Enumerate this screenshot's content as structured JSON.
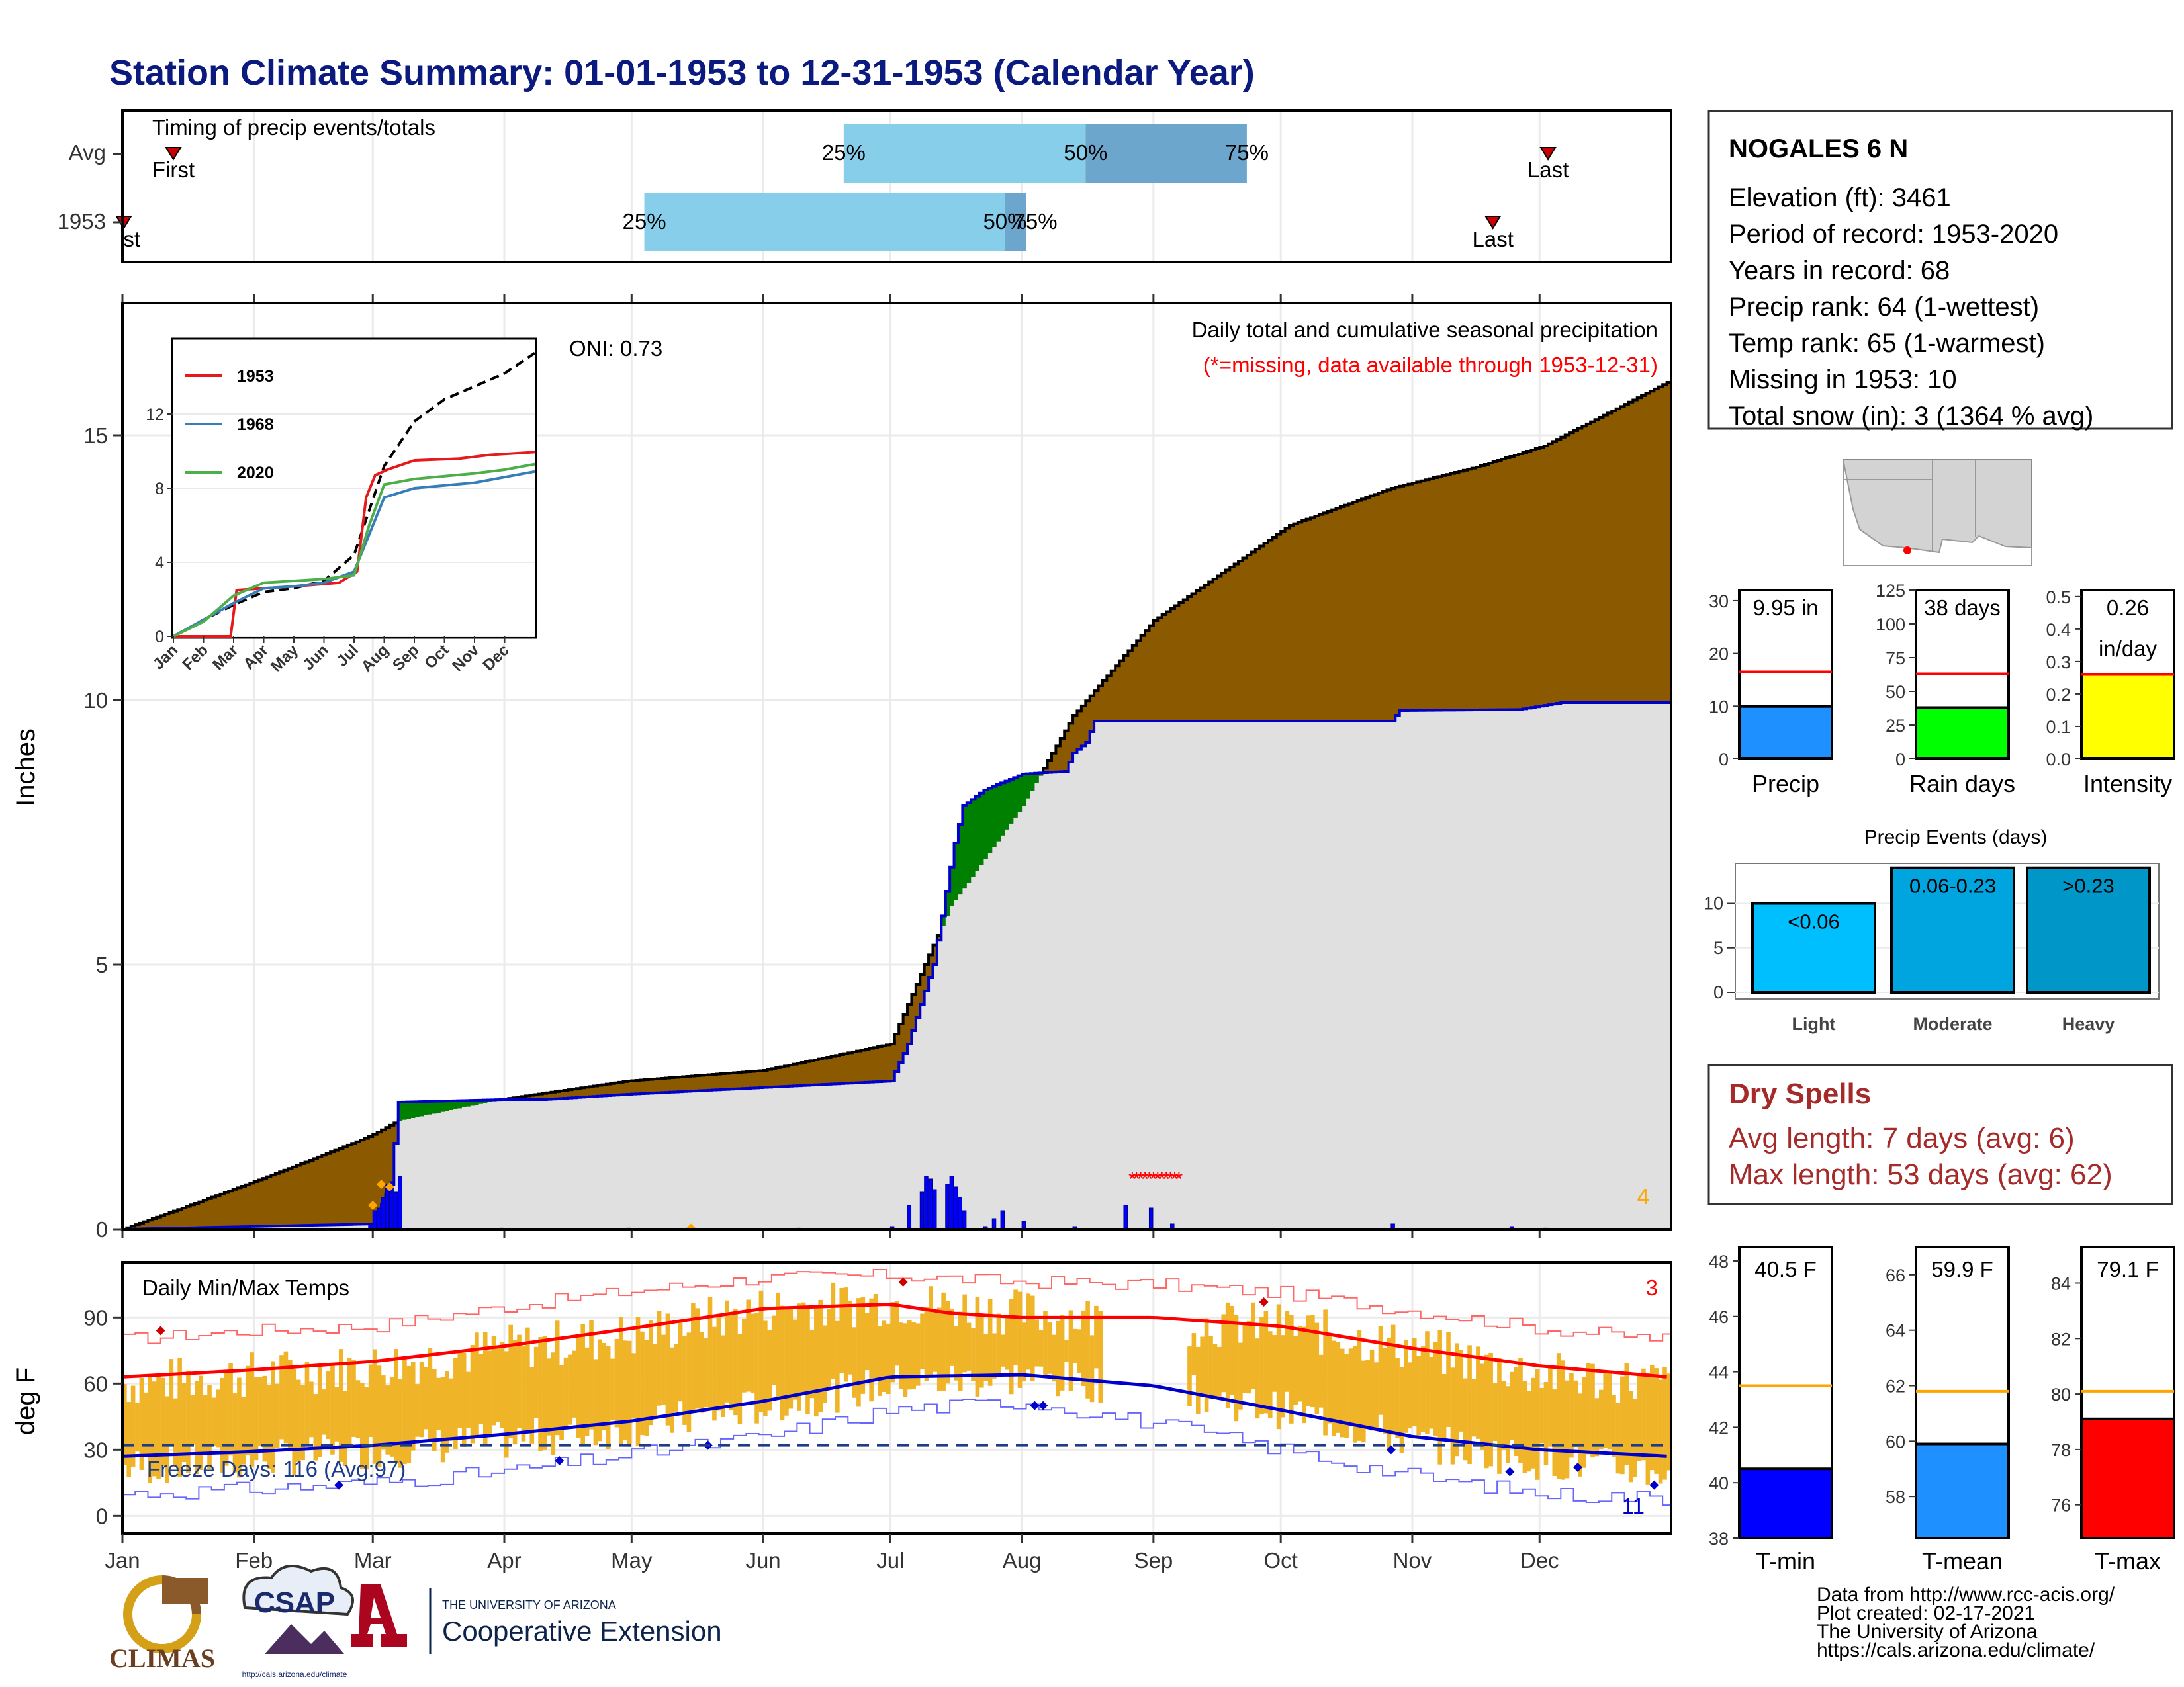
{
  "title": "Station Climate Summary: 01-01-1953 to 12-31-1953 (Calendar Year)",
  "months": [
    "Jan",
    "Feb",
    "Mar",
    "Apr",
    "May",
    "Jun",
    "Jul",
    "Aug",
    "Sep",
    "Oct",
    "Nov",
    "Dec"
  ],
  "timing_panel": {
    "label": "Timing of precip events/totals",
    "rows": [
      "Avg",
      "1953"
    ],
    "first_label": "First",
    "last_label": "Last",
    "first_label_1953": "First",
    "pct_labels": [
      "25%",
      "50%",
      "75%"
    ],
    "chart_data": {
      "type": "bar",
      "x_units": "day of year",
      "avg": {
        "first": 13,
        "q25": 171,
        "q50": 228,
        "q75": 266,
        "last": 337
      },
      "y1953": {
        "first": 1,
        "q25": 124,
        "q50": 209,
        "q75": 214,
        "last": 324
      }
    }
  },
  "precip_panel": {
    "ylabel": "Inches",
    "yticks": [
      "0",
      "5",
      "10",
      "15"
    ],
    "oni": "ONI: 0.73",
    "caption": "Daily total and cumulative seasonal precipitation",
    "missing_note": "(*=missing, data available through 1953-12-31)",
    "corner_count": "4",
    "chart_data": {
      "type": "area",
      "x_units": "day of year",
      "ylim": [
        0,
        17.5
      ],
      "avg_cumulative": [
        [
          1,
          0
        ],
        [
          15,
          0.4
        ],
        [
          32,
          0.9
        ],
        [
          45,
          1.3
        ],
        [
          59,
          1.75
        ],
        [
          66,
          2.05
        ],
        [
          90,
          2.45
        ],
        [
          120,
          2.8
        ],
        [
          152,
          3.0
        ],
        [
          182,
          3.5
        ],
        [
          190,
          5.0
        ],
        [
          196,
          6.1
        ],
        [
          213,
          8.0
        ],
        [
          225,
          9.7
        ],
        [
          244,
          11.5
        ],
        [
          260,
          12.4
        ],
        [
          276,
          13.3
        ],
        [
          300,
          14.0
        ],
        [
          320,
          14.4
        ],
        [
          336,
          14.8
        ],
        [
          365,
          16.0
        ]
      ],
      "cum_1953": [
        [
          1,
          0
        ],
        [
          60,
          0.1
        ],
        [
          64,
          0.85
        ],
        [
          66,
          2.4
        ],
        [
          90,
          2.45
        ],
        [
          100,
          2.45
        ],
        [
          120,
          2.55
        ],
        [
          182,
          2.8
        ],
        [
          186,
          3.5
        ],
        [
          192,
          5.0
        ],
        [
          197,
          7.3
        ],
        [
          199,
          8.0
        ],
        [
          204,
          8.3
        ],
        [
          213,
          8.6
        ],
        [
          223,
          8.65
        ],
        [
          225,
          9.0
        ],
        [
          228,
          9.2
        ],
        [
          230,
          9.6
        ],
        [
          250,
          9.6
        ],
        [
          280,
          9.6
        ],
        [
          300,
          9.6
        ],
        [
          302,
          9.8
        ],
        [
          330,
          9.82
        ],
        [
          340,
          9.95
        ],
        [
          365,
          9.95
        ]
      ],
      "missing_days": [
        [
          239,
          1.0
        ],
        [
          250,
          1.0
        ]
      ],
      "daily_bars": [
        [
          59,
          0.1
        ],
        [
          60,
          0.35
        ],
        [
          61,
          0.4
        ],
        [
          62,
          0.6
        ],
        [
          63,
          0.85
        ],
        [
          64,
          0.9
        ],
        [
          65,
          0.7
        ],
        [
          66,
          1.0
        ],
        [
          90,
          0.02
        ],
        [
          120,
          0.02
        ],
        [
          160,
          0.02
        ],
        [
          182,
          0.05
        ],
        [
          186,
          0.45
        ],
        [
          189,
          0.7
        ],
        [
          190,
          1.0
        ],
        [
          191,
          0.95
        ],
        [
          192,
          0.75
        ],
        [
          195,
          0.85
        ],
        [
          196,
          1.0
        ],
        [
          197,
          0.8
        ],
        [
          198,
          0.6
        ],
        [
          199,
          0.35
        ],
        [
          204,
          0.05
        ],
        [
          206,
          0.2
        ],
        [
          208,
          0.35
        ],
        [
          213,
          0.15
        ],
        [
          225,
          0.05
        ],
        [
          237,
          0.45
        ],
        [
          243,
          0.4
        ],
        [
          248,
          0.1
        ],
        [
          300,
          0.1
        ],
        [
          328,
          0.05
        ],
        [
          336,
          0.02
        ]
      ]
    }
  },
  "inset": {
    "legend": [
      "1953",
      "1968",
      "2020"
    ],
    "yticks": [
      "0",
      "4",
      "8",
      "12"
    ],
    "colors": {
      "1953": "#e41a1c",
      "1968": "#377eb8",
      "2020": "#4daf4a"
    },
    "chart_data": {
      "type": "line",
      "x_units": "month",
      "ylim": [
        0,
        16
      ],
      "avg": [
        [
          0,
          0
        ],
        [
          1,
          0.9
        ],
        [
          2,
          1.7
        ],
        [
          3,
          2.4
        ],
        [
          4,
          2.6
        ],
        [
          5,
          3.0
        ],
        [
          6,
          4.4
        ],
        [
          7,
          9.2
        ],
        [
          8,
          11.6
        ],
        [
          9,
          12.8
        ],
        [
          10,
          13.5
        ],
        [
          11,
          14.2
        ],
        [
          12,
          15.3
        ]
      ],
      "series": [
        {
          "name": "1953",
          "values": [
            [
              0,
              0
            ],
            [
              1.9,
              0
            ],
            [
              2.1,
              2.5
            ],
            [
              4,
              2.7
            ],
            [
              5.5,
              2.9
            ],
            [
              6.1,
              3.5
            ],
            [
              6.4,
              7.5
            ],
            [
              6.7,
              8.7
            ],
            [
              7.1,
              9.0
            ],
            [
              8,
              9.5
            ],
            [
              9.5,
              9.6
            ],
            [
              10.5,
              9.8
            ],
            [
              12,
              9.95
            ]
          ]
        },
        {
          "name": "1968",
          "values": [
            [
              0,
              0
            ],
            [
              1,
              0.9
            ],
            [
              2,
              1.8
            ],
            [
              3,
              2.6
            ],
            [
              4,
              2.7
            ],
            [
              5,
              2.9
            ],
            [
              6,
              3.5
            ],
            [
              6.5,
              5.5
            ],
            [
              7,
              7.5
            ],
            [
              8,
              8.0
            ],
            [
              10,
              8.3
            ],
            [
              11,
              8.6
            ],
            [
              12,
              8.9
            ]
          ]
        },
        {
          "name": "2020",
          "values": [
            [
              0,
              0
            ],
            [
              1,
              0.8
            ],
            [
              2,
              2.2
            ],
            [
              3,
              2.9
            ],
            [
              4,
              3.0
            ],
            [
              5,
              3.1
            ],
            [
              6,
              3.3
            ],
            [
              6.5,
              6.0
            ],
            [
              7,
              8.2
            ],
            [
              8,
              8.5
            ],
            [
              10,
              8.8
            ],
            [
              11,
              9.0
            ],
            [
              12,
              9.3
            ]
          ]
        }
      ]
    }
  },
  "temp_panel": {
    "ylabel": "deg F",
    "yticks": [
      "0",
      "30",
      "60",
      "90"
    ],
    "label": "Daily Min/Max Temps",
    "freeze": "Freeze Days: 116 (Avg:97)",
    "corner_red": "3",
    "corner_blue": "11",
    "chart_data": {
      "type": "bar",
      "x_units": "day of year",
      "ylim": [
        -8,
        115
      ],
      "avg_max_normal": [
        [
          1,
          63
        ],
        [
          30,
          66
        ],
        [
          60,
          70
        ],
        [
          91,
          77
        ],
        [
          121,
          85
        ],
        [
          152,
          94
        ],
        [
          182,
          96
        ],
        [
          196,
          92
        ],
        [
          213,
          90
        ],
        [
          244,
          90
        ],
        [
          274,
          86
        ],
        [
          305,
          76
        ],
        [
          335,
          68
        ],
        [
          365,
          63
        ]
      ],
      "avg_min_normal": [
        [
          1,
          27
        ],
        [
          30,
          29
        ],
        [
          60,
          32
        ],
        [
          91,
          37
        ],
        [
          121,
          43
        ],
        [
          152,
          52
        ],
        [
          182,
          63
        ],
        [
          213,
          64
        ],
        [
          244,
          59
        ],
        [
          274,
          48
        ],
        [
          305,
          36
        ],
        [
          335,
          30
        ],
        [
          365,
          27
        ]
      ],
      "record_high": [
        [
          1,
          80
        ],
        [
          30,
          84
        ],
        [
          60,
          86
        ],
        [
          91,
          95
        ],
        [
          121,
          102
        ],
        [
          152,
          108
        ],
        [
          182,
          109
        ],
        [
          213,
          106
        ],
        [
          244,
          105
        ],
        [
          274,
          101
        ],
        [
          305,
          93
        ],
        [
          335,
          85
        ],
        [
          365,
          80
        ]
      ],
      "record_low": [
        [
          1,
          10
        ],
        [
          30,
          12
        ],
        [
          60,
          15
        ],
        [
          91,
          20
        ],
        [
          121,
          28
        ],
        [
          152,
          36
        ],
        [
          182,
          48
        ],
        [
          213,
          52
        ],
        [
          244,
          42
        ],
        [
          274,
          30
        ],
        [
          305,
          18
        ],
        [
          335,
          10
        ],
        [
          365,
          8
        ]
      ],
      "daily_max_1953": [
        [
          1,
          60
        ],
        [
          30,
          64
        ],
        [
          60,
          68
        ],
        [
          91,
          76
        ],
        [
          121,
          82
        ],
        [
          152,
          94
        ],
        [
          182,
          97
        ],
        [
          213,
          92
        ],
        [
          244,
          88
        ],
        [
          274,
          86
        ],
        [
          305,
          76
        ],
        [
          335,
          64
        ],
        [
          365,
          60
        ]
      ],
      "daily_min_1953": [
        [
          1,
          22
        ],
        [
          30,
          25
        ],
        [
          60,
          30
        ],
        [
          91,
          34
        ],
        [
          121,
          40
        ],
        [
          152,
          50
        ],
        [
          182,
          60
        ],
        [
          213,
          63
        ],
        [
          244,
          58
        ],
        [
          274,
          48
        ],
        [
          305,
          34
        ],
        [
          335,
          25
        ],
        [
          365,
          20
        ]
      ],
      "missing_range": [
        [
          232,
          251
        ]
      ],
      "freeze_line": 32
    }
  },
  "station": {
    "name": "NOGALES 6 N",
    "lines": [
      "Elevation (ft): 3461",
      "Period of record: 1953-2020",
      "Years in record: 68",
      "Precip rank: 64 (1-wettest)",
      "Temp rank: 65 (1-warmest)",
      "Missing in 1953: 10",
      "Total snow (in): 3 (1364 % avg)"
    ]
  },
  "mini_charts": [
    {
      "label": "Precip",
      "value_label": "9.95 in",
      "value": 9.95,
      "avg": 16.5,
      "ylim": [
        0,
        32
      ],
      "yticks": [
        "0",
        "10",
        "20",
        "30"
      ],
      "color": "#1e90ff"
    },
    {
      "label": "Rain days",
      "value_label": "38 days",
      "value": 38,
      "avg": 63,
      "ylim": [
        0,
        125
      ],
      "yticks": [
        "0",
        "25",
        "50",
        "75",
        "100",
        "125"
      ],
      "color": "#00ff00"
    },
    {
      "label": "Intensity",
      "value_label": "0.26",
      "value_label2": "in/day",
      "value": 0.26,
      "avg": 0.26,
      "ylim": [
        0,
        0.52
      ],
      "yticks": [
        "0.0",
        "0.1",
        "0.2",
        "0.3",
        "0.4",
        "0.5"
      ],
      "color": "#ffff00"
    }
  ],
  "precip_events": {
    "title": "Precip Events (days)",
    "yticks": [
      "0",
      "5",
      "10"
    ],
    "chart_data": {
      "type": "bar",
      "categories": [
        "Light",
        "Moderate",
        "Heavy"
      ],
      "bar_labels": [
        "<0.06",
        "0.06-0.23",
        ">0.23"
      ],
      "values": [
        10,
        14,
        14
      ],
      "ylim": [
        0,
        14.5
      ],
      "colors": [
        "#00bfff",
        "#00a5e0",
        "#0096c7"
      ]
    }
  },
  "dry_spells": {
    "title": "Dry Spells",
    "avg": "Avg length: 7 days (avg: 6)",
    "max": "Max length: 53 days (avg: 62)"
  },
  "temp_boxes": [
    {
      "label": "T-min",
      "value_label": "40.5 F",
      "value": 40.5,
      "avg": 43.5,
      "ylim": [
        38,
        48.5
      ],
      "yticks": [
        "38",
        "40",
        "42",
        "44",
        "46",
        "48"
      ],
      "color": "#0000ff"
    },
    {
      "label": "T-mean",
      "value_label": "59.9 F",
      "value": 59.9,
      "avg": 61.8,
      "ylim": [
        56.5,
        67
      ],
      "yticks": [
        "58",
        "60",
        "62",
        "64",
        "66"
      ],
      "color": "#1e90ff"
    },
    {
      "label": "T-max",
      "value_label": "79.1 F",
      "value": 79.1,
      "avg": 80.1,
      "ylim": [
        74.8,
        85.3
      ],
      "yticks": [
        "76",
        "78",
        "80",
        "82",
        "84"
      ],
      "color": "#ff0000"
    }
  ],
  "footer": {
    "lines": [
      "Data from http://www.rcc-acis.org/",
      "Plot created: 02-17-2021",
      "The University of Arizona",
      "https://cals.arizona.edu/climate/"
    ],
    "logo_climas": "CLIMAS",
    "logo_csap": "CSAP",
    "csap_url": "http://cals.arizona.edu/climate",
    "ua_small": "THE UNIVERSITY OF ARIZONA",
    "ua_big": "Cooperative Extension"
  },
  "colors": {
    "title": "#0b1a7f",
    "avg_fill": "#8b5a00",
    "above_fill": "#008000",
    "base_fill": "#e0e0e0",
    "line_1953": "#0000cd",
    "temp_bar": "#f0b429",
    "avg_max": "#ff0000",
    "avg_min": "#0000cd"
  }
}
